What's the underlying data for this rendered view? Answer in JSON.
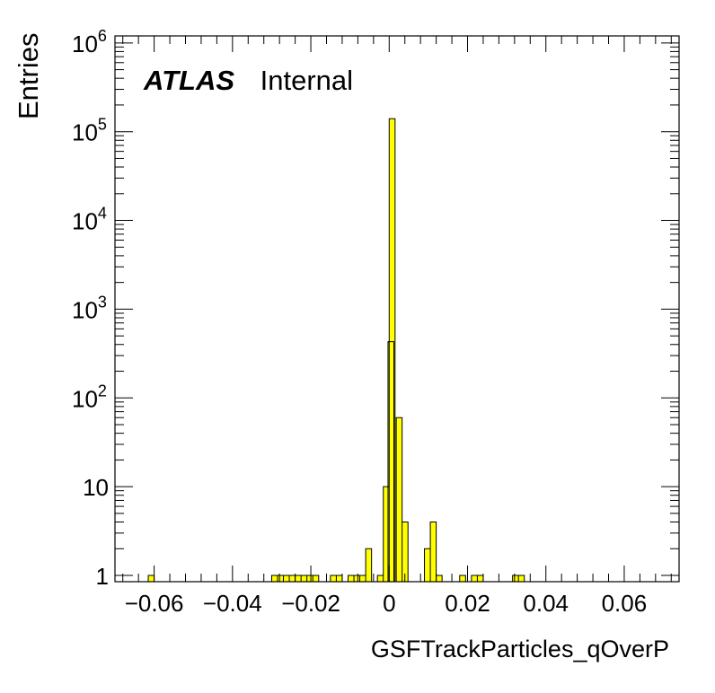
{
  "chart_data": {
    "type": "bar",
    "style": "histogram",
    "xlabel": "GSFTrackParticles_qOverP",
    "ylabel": "Entries",
    "xlim": [
      -0.07,
      0.074
    ],
    "ylim": [
      0.85,
      1200000
    ],
    "log_y": true,
    "grid": false,
    "fill_color": "#ffff00",
    "line_color": "#000000",
    "x_ticks": [
      {
        "v": -0.06,
        "label": "−0.06"
      },
      {
        "v": -0.04,
        "label": "−0.04"
      },
      {
        "v": -0.02,
        "label": "−0.02"
      },
      {
        "v": 0,
        "label": "0"
      },
      {
        "v": 0.02,
        "label": "0.02"
      },
      {
        "v": 0.04,
        "label": "0.04"
      },
      {
        "v": 0.06,
        "label": "0.06"
      }
    ],
    "y_ticks": [
      {
        "v": 1,
        "base": "1",
        "exp": ""
      },
      {
        "v": 10,
        "base": "10",
        "exp": ""
      },
      {
        "v": 100,
        "base": "10",
        "exp": "2"
      },
      {
        "v": 1000,
        "base": "10",
        "exp": "3"
      },
      {
        "v": 10000,
        "base": "10",
        "exp": "4"
      },
      {
        "v": 100000,
        "base": "10",
        "exp": "5"
      },
      {
        "v": 1000000,
        "base": "10",
        "exp": "6"
      }
    ],
    "bin_width": 0.0015,
    "bins": [
      {
        "x": -0.0615,
        "y": 1
      },
      {
        "x": -0.03,
        "y": 1
      },
      {
        "x": -0.0285,
        "y": 1
      },
      {
        "x": -0.027,
        "y": 1
      },
      {
        "x": -0.0255,
        "y": 1
      },
      {
        "x": -0.024,
        "y": 1
      },
      {
        "x": -0.0225,
        "y": 1
      },
      {
        "x": -0.021,
        "y": 1
      },
      {
        "x": -0.0195,
        "y": 1
      },
      {
        "x": -0.015,
        "y": 1
      },
      {
        "x": -0.0135,
        "y": 1
      },
      {
        "x": -0.0105,
        "y": 1
      },
      {
        "x": -0.009,
        "y": 1
      },
      {
        "x": -0.0075,
        "y": 1
      },
      {
        "x": -0.006,
        "y": 2
      },
      {
        "x": -0.003,
        "y": 1
      },
      {
        "x": -0.0015,
        "y": 10
      },
      {
        "x": -0.0003,
        "y": 430
      },
      {
        "x": 0.0,
        "y": 140000
      },
      {
        "x": 0.0018,
        "y": 60
      },
      {
        "x": 0.0033,
        "y": 4
      },
      {
        "x": 0.009,
        "y": 2
      },
      {
        "x": 0.0105,
        "y": 4
      },
      {
        "x": 0.012,
        "y": 1
      },
      {
        "x": 0.018,
        "y": 1
      },
      {
        "x": 0.021,
        "y": 1
      },
      {
        "x": 0.0225,
        "y": 1
      },
      {
        "x": 0.0315,
        "y": 1
      },
      {
        "x": 0.033,
        "y": 1
      }
    ]
  },
  "label": {
    "experiment": "ATLAS",
    "status": "Internal"
  }
}
